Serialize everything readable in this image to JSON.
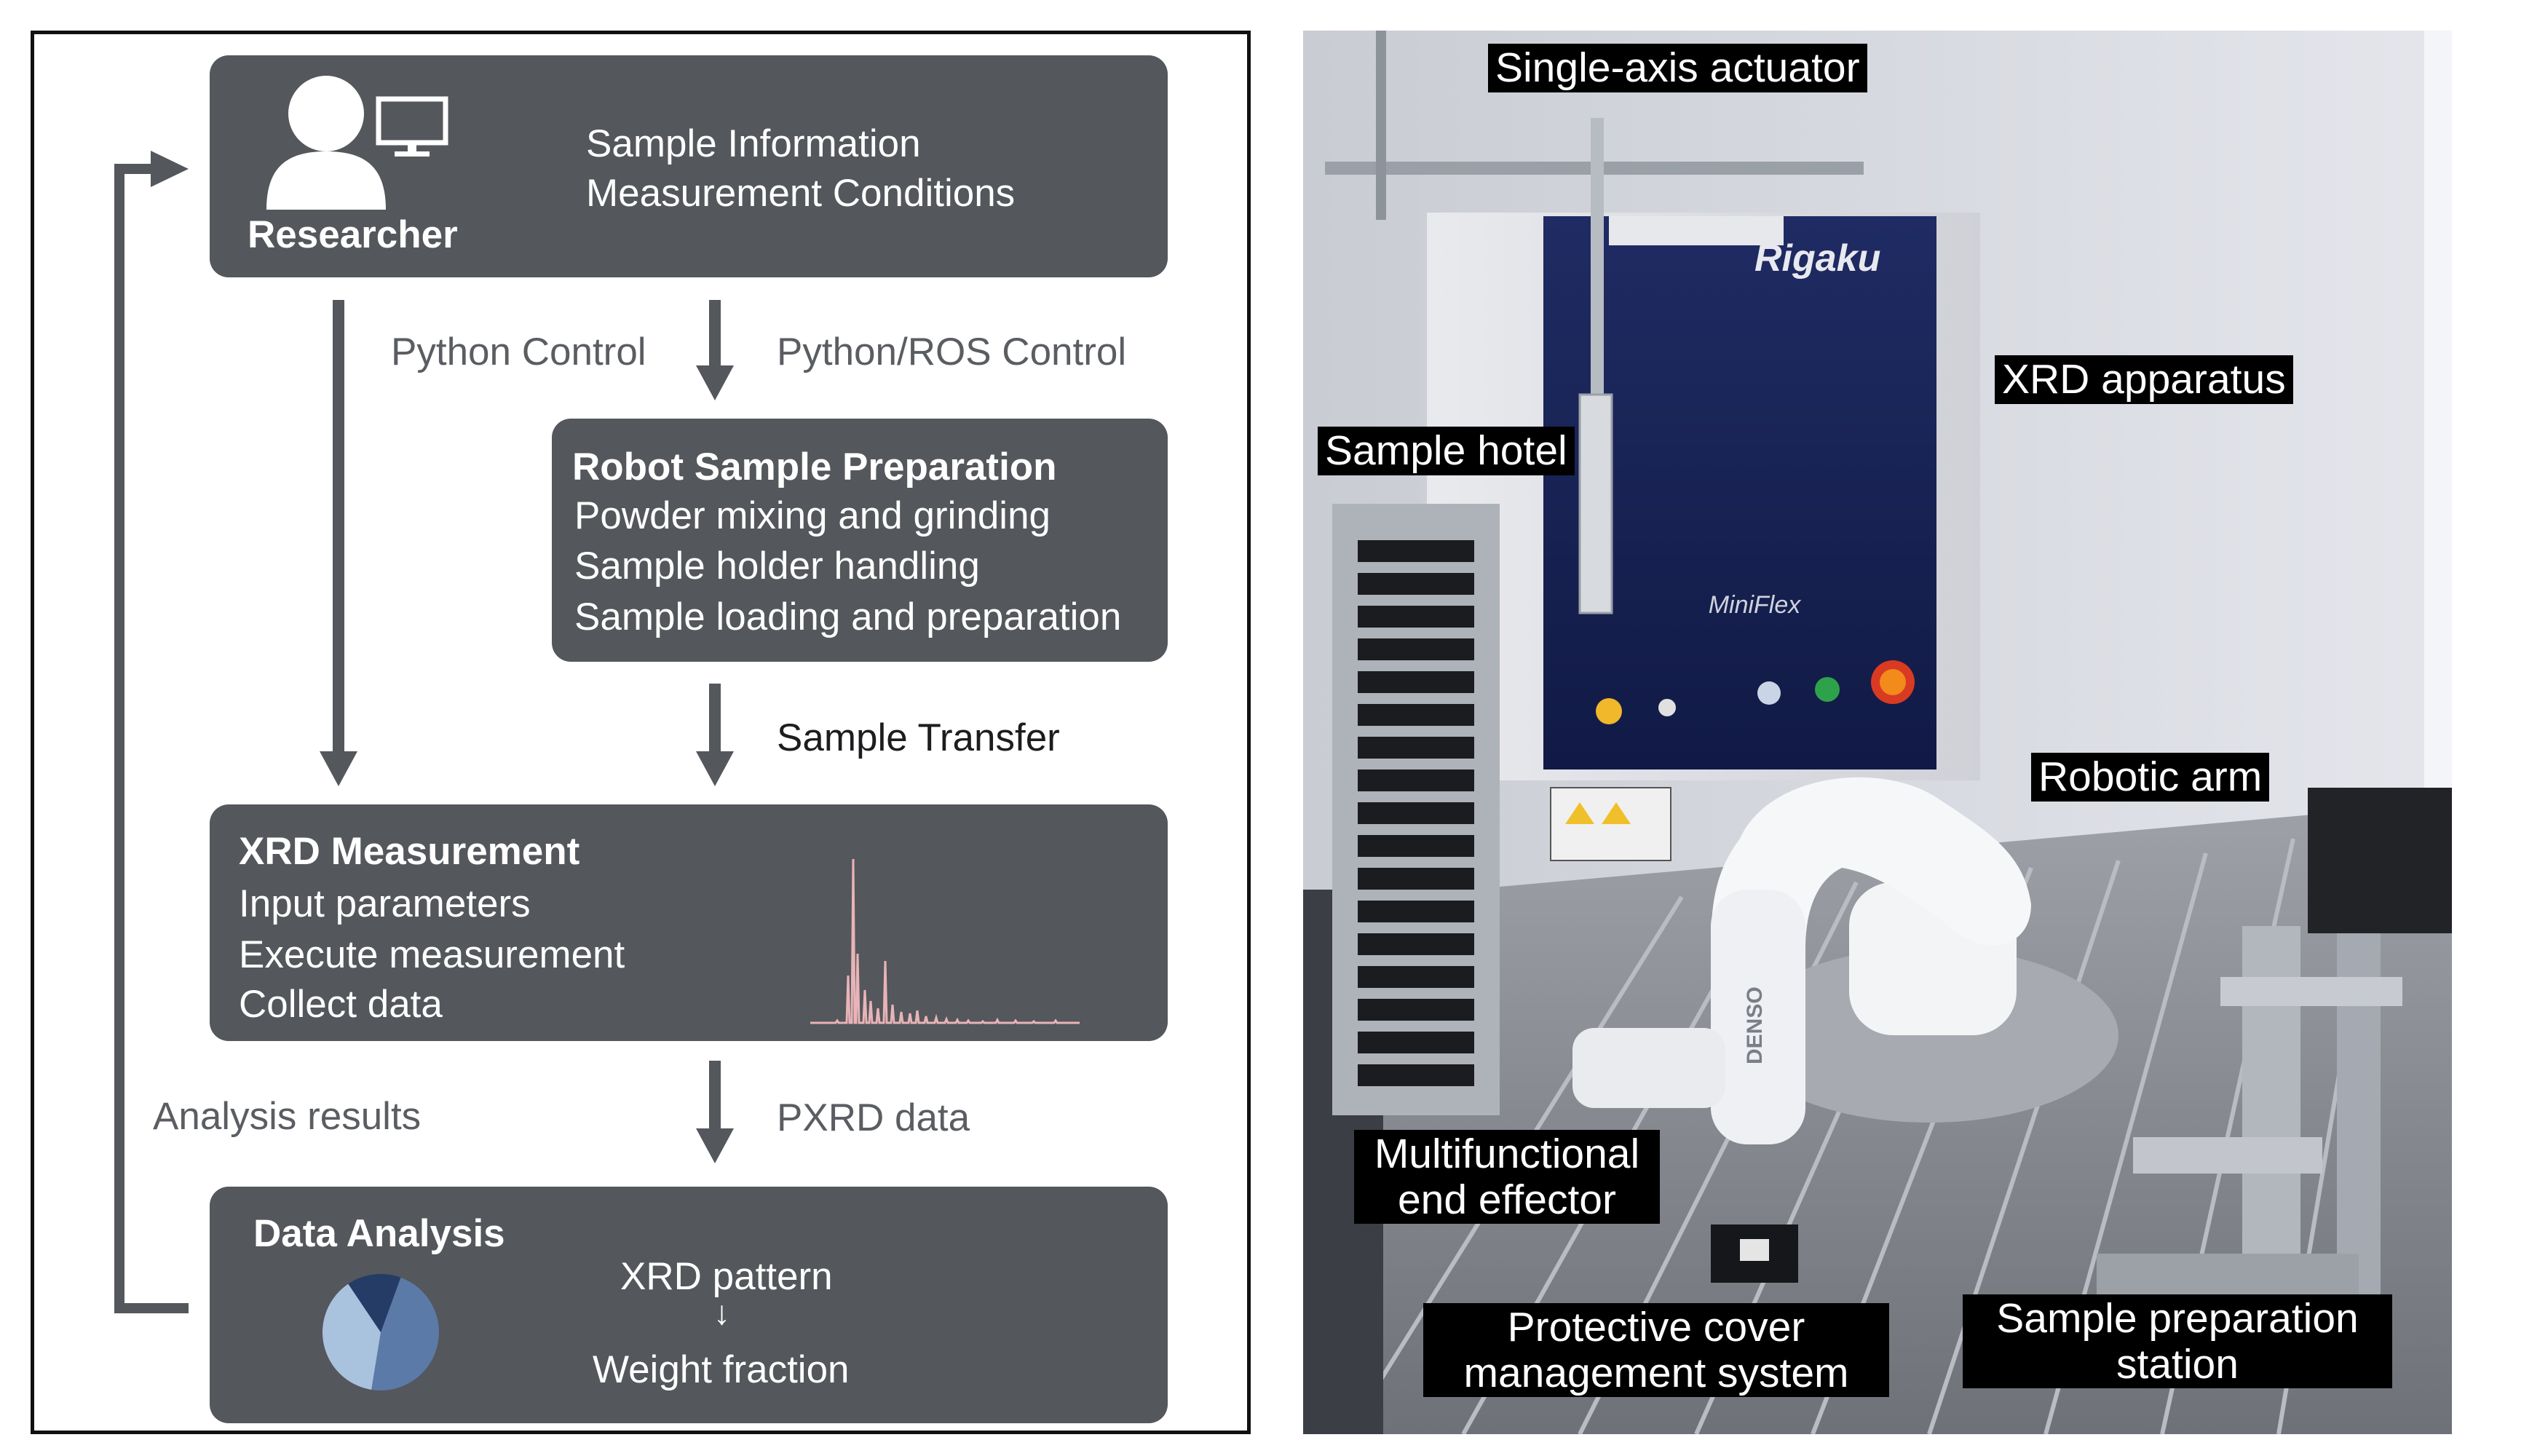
{
  "workflow": {
    "researcher": {
      "label": "Researcher",
      "line1": "Sample Information",
      "line2": "Measurement Conditions"
    },
    "python_control": "Python Control",
    "python_ros_control": "Python/ROS Control",
    "robot_prep": {
      "title": "Robot Sample Preparation",
      "items": [
        "Powder mixing and grinding",
        "Sample holder handling",
        "Sample loading and preparation"
      ]
    },
    "sample_transfer": "Sample Transfer",
    "xrd_measurement": {
      "title": "XRD Measurement",
      "items": [
        "Input parameters",
        "Execute measurement",
        "Collect data"
      ]
    },
    "analysis_results": "Analysis results",
    "pxrd_data": "PXRD data",
    "data_analysis": {
      "title": "Data Analysis",
      "line1": "XRD pattern",
      "arrow": "↓",
      "line2": "Weight fraction"
    },
    "pie_fractions": [
      0.47,
      0.38,
      0.15
    ],
    "colors": {
      "box": "#54575b",
      "pattern": "#e8b4b8",
      "pie": [
        "#5b7aa8",
        "#a9c2de",
        "#243c66"
      ]
    }
  },
  "photo": {
    "brand": "Rigaku",
    "model": "MiniFlex",
    "arm_brand": "DENSO",
    "labels": {
      "actuator": "Single-axis actuator",
      "xrd": "XRD apparatus",
      "hotel": "Sample hotel",
      "arm": "Robotic arm",
      "effector1": "Multifunctional",
      "effector2": "end effector",
      "cover1": "Protective cover",
      "cover2": "management system",
      "station1": "Sample preparation",
      "station2": "station"
    }
  }
}
